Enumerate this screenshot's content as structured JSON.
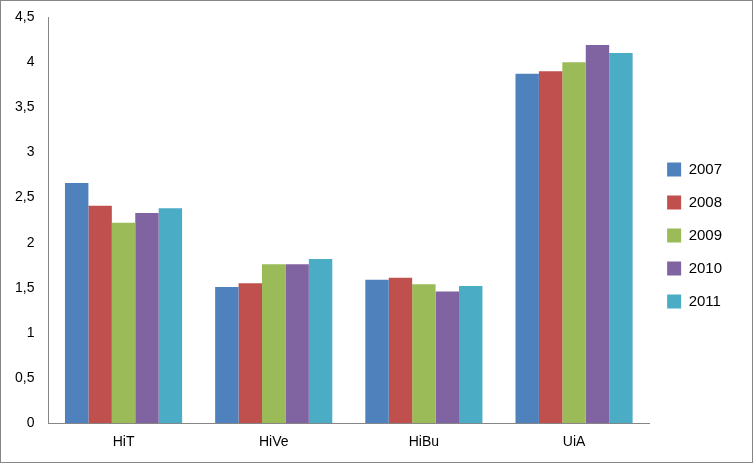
{
  "chart_data": {
    "type": "bar",
    "categories": [
      "HiT",
      "HiVe",
      "HiBu",
      "UiA"
    ],
    "series": [
      {
        "name": "2007",
        "color": "#4f81bd",
        "values": [
          2.66,
          1.51,
          1.59,
          3.87
        ]
      },
      {
        "name": "2008",
        "color": "#c0504d",
        "values": [
          2.41,
          1.55,
          1.61,
          3.9
        ]
      },
      {
        "name": "2009",
        "color": "#9bbb59",
        "values": [
          2.22,
          1.76,
          1.54,
          4.0
        ]
      },
      {
        "name": "2010",
        "color": "#8064a2",
        "values": [
          2.33,
          1.76,
          1.46,
          4.19
        ]
      },
      {
        "name": "2011",
        "color": "#4bacc6",
        "values": [
          2.38,
          1.82,
          1.52,
          4.1
        ]
      }
    ],
    "ylim": [
      0,
      4.5
    ],
    "yticks": [
      0,
      {
        "value": 0.5,
        "label": "0,5"
      },
      1,
      {
        "value": 1.5,
        "label": "1,5"
      },
      2,
      {
        "value": 2.5,
        "label": "2,5"
      },
      3,
      {
        "value": 3.5,
        "label": "3,5"
      },
      4,
      {
        "value": 4.5,
        "label": "4,5"
      }
    ],
    "grid": false,
    "legend": "right"
  }
}
